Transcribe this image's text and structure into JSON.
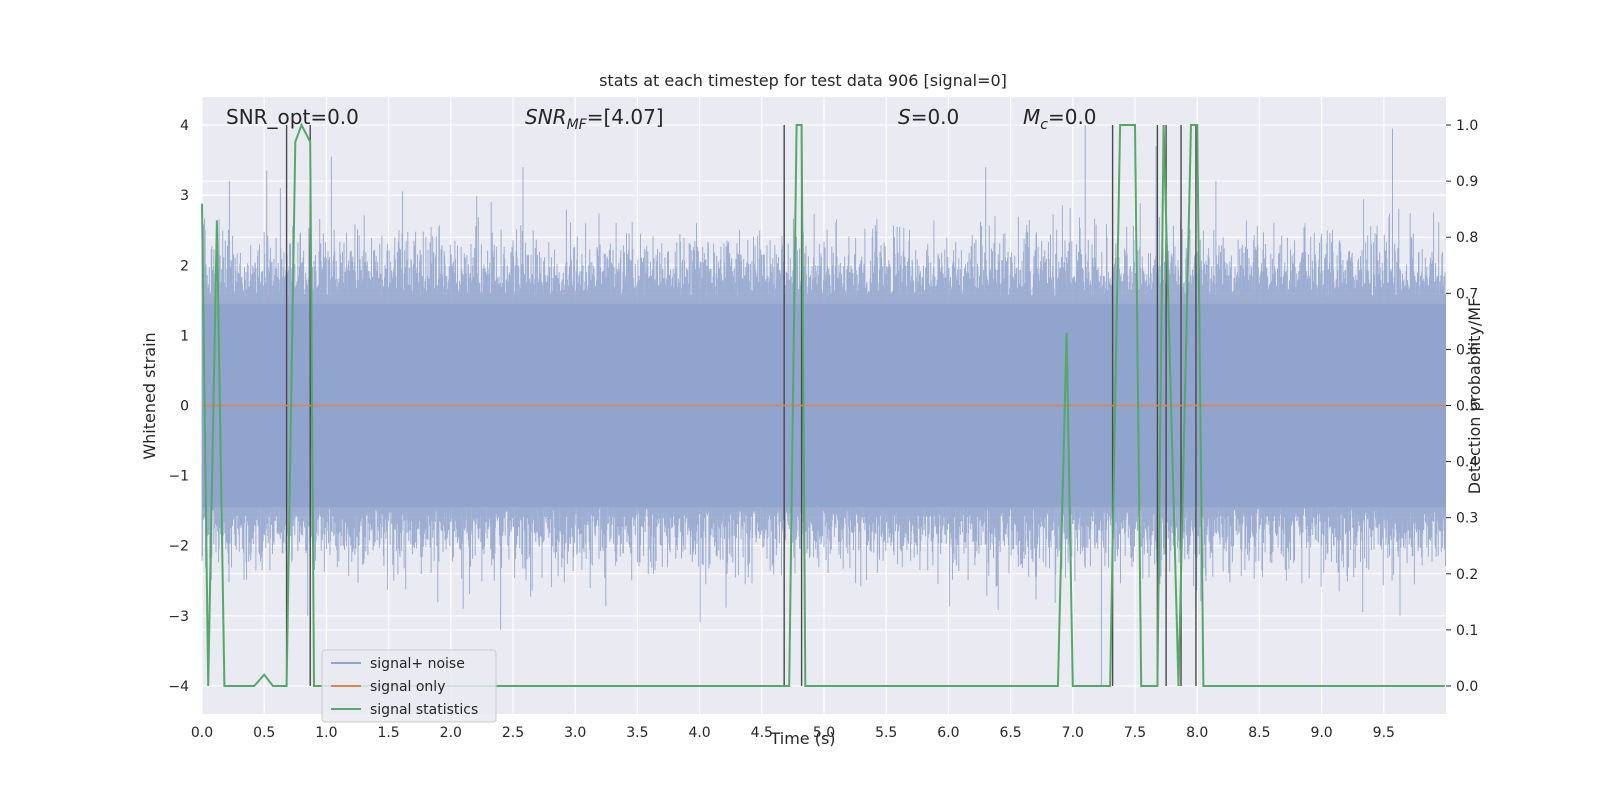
{
  "chart_data": {
    "type": "line",
    "title": "stats at each timestep for test data 906 [signal=0]",
    "xlabel": "Time (s)",
    "ylabel": "Whitened strain",
    "ylabel_right": "Detection probability/MF",
    "xlim": [
      0.0,
      10.0
    ],
    "ylim": [
      -4.4,
      4.4
    ],
    "ylim_right": [
      -0.05,
      1.05
    ],
    "x_ticks": [
      "0.0",
      "0.5",
      "1.0",
      "1.5",
      "2.0",
      "2.5",
      "3.0",
      "3.5",
      "4.0",
      "4.5",
      "5.0",
      "5.5",
      "6.0",
      "6.5",
      "7.0",
      "7.5",
      "8.0",
      "8.5",
      "9.0",
      "9.5"
    ],
    "y_ticks": [
      "4",
      "3",
      "2",
      "1",
      "0",
      "−1",
      "−2",
      "−3",
      "−4"
    ],
    "y_ticks_right": [
      "1.0",
      "0.9",
      "0.8",
      "0.7",
      "0.6",
      "0.5",
      "0.4",
      "0.3",
      "0.2",
      "0.1",
      "0.0"
    ],
    "grid": true,
    "legend_position": "lower-left",
    "annotations": {
      "snr_opt": "SNR_opt=0.0",
      "snr_mf": "SNR",
      "snr_mf_sub": "MF",
      "snr_mf_val": "=[4.07]",
      "s_label": "S",
      "s_val": "=0.0",
      "mc_label": "M",
      "mc_sub": "c",
      "mc_val": "=0.0"
    },
    "series": [
      {
        "name": "signal+ noise",
        "color": "#8fa3cc",
        "kind": "noise",
        "envelope_y": [
          -4.0,
          4.0
        ],
        "peaks": [
          {
            "x": 0.22,
            "y": 3.2
          },
          {
            "x": 0.52,
            "y": 3.35
          },
          {
            "x": 0.63,
            "y": 3.1
          },
          {
            "x": 1.04,
            "y": 3.55
          },
          {
            "x": 2.58,
            "y": 3.4
          },
          {
            "x": 6.3,
            "y": 3.4
          },
          {
            "x": 7.1,
            "y": 4.0
          },
          {
            "x": 7.67,
            "y": 3.7
          },
          {
            "x": 8.15,
            "y": 3.2
          },
          {
            "x": 9.57,
            "y": 3.95
          },
          {
            "x": 0.85,
            "y": -3.0
          },
          {
            "x": 2.1,
            "y": -2.9
          },
          {
            "x": 2.4,
            "y": -3.2
          },
          {
            "x": 9.63,
            "y": -3.0
          },
          {
            "x": 7.23,
            "y": -4.0
          },
          {
            "x": 9.33,
            "y": -2.95
          }
        ]
      },
      {
        "name": "signal only",
        "color": "#dd8452",
        "x": [
          0.0,
          10.0
        ],
        "y": [
          0.0,
          0.0
        ]
      },
      {
        "name": "signal statistics",
        "color": "#55a868",
        "axis": "right",
        "x": [
          0.0,
          0.05,
          0.12,
          0.18,
          0.25,
          0.32,
          0.42,
          0.5,
          0.57,
          0.68,
          0.75,
          0.8,
          0.87,
          0.9,
          0.95,
          4.72,
          4.78,
          4.82,
          4.85,
          4.9,
          5.0,
          6.88,
          6.95,
          7.0,
          7.3,
          7.38,
          7.5,
          7.55,
          7.68,
          7.73,
          7.85,
          7.95,
          8.0,
          8.05,
          9.99
        ],
        "y": [
          0.86,
          0.0,
          0.83,
          0.0,
          0.0,
          0.0,
          0.0,
          0.02,
          0.0,
          0.0,
          0.97,
          1.0,
          0.97,
          0.0,
          0.0,
          0.0,
          1.0,
          1.0,
          0.0,
          0.0,
          0.0,
          0.0,
          0.63,
          0.0,
          0.0,
          1.0,
          1.0,
          0.0,
          0.0,
          1.0,
          0.0,
          1.0,
          1.0,
          0.0,
          0.0
        ]
      }
    ],
    "vertical_lines_x": [
      0.68,
      0.87,
      4.68,
      4.82,
      7.32,
      7.68,
      7.75,
      7.87,
      7.99
    ]
  }
}
